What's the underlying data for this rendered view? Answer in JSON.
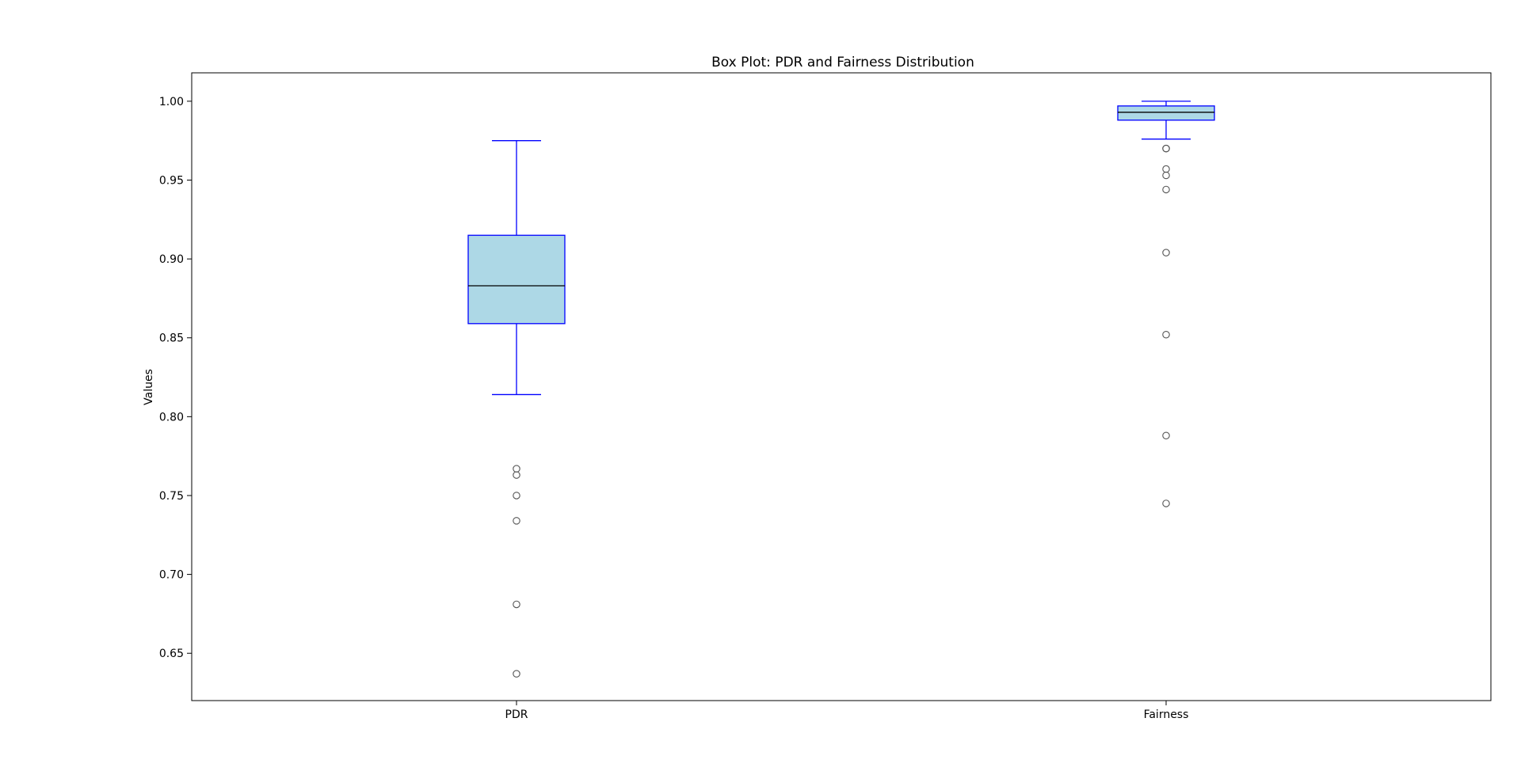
{
  "chart_data": {
    "type": "box",
    "title": "Box Plot: PDR and Fairness Distribution",
    "xlabel": "",
    "ylabel": "Values",
    "ylim": [
      0.62,
      1.018
    ],
    "yticks": [
      0.65,
      0.7,
      0.75,
      0.8,
      0.85,
      0.9,
      0.95,
      1.0
    ],
    "ytick_labels": [
      "0.65",
      "0.70",
      "0.75",
      "0.80",
      "0.85",
      "0.90",
      "0.95",
      "1.00"
    ],
    "categories": [
      "PDR",
      "Fairness"
    ],
    "grid": false,
    "legend": "none",
    "colors": {
      "box_fill": "#add8e6",
      "box_edge": "#0000ff",
      "median": "#000000",
      "whisker": "#0000ff",
      "outlier": "#555555"
    },
    "boxes": [
      {
        "label": "PDR",
        "whisker_low": 0.814,
        "q1": 0.859,
        "median": 0.883,
        "q3": 0.915,
        "whisker_high": 0.975,
        "outliers": [
          0.767,
          0.763,
          0.75,
          0.734,
          0.681,
          0.637
        ]
      },
      {
        "label": "Fairness",
        "whisker_low": 0.976,
        "q1": 0.988,
        "median": 0.993,
        "q3": 0.997,
        "whisker_high": 1.0,
        "outliers": [
          0.97,
          0.97,
          0.957,
          0.953,
          0.944,
          0.904,
          0.852,
          0.788,
          0.745
        ]
      }
    ]
  }
}
